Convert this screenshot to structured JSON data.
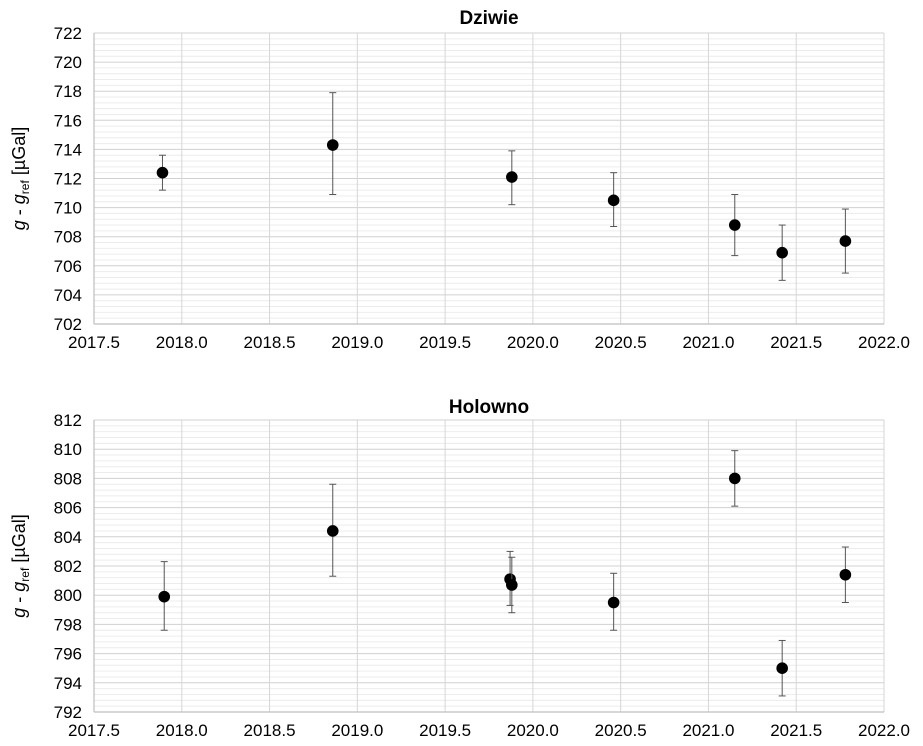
{
  "chart_data": [
    {
      "type": "scatter",
      "title": "Dziwie",
      "ylabel": {
        "italic_1": "g",
        "sep": " - ",
        "italic_2": "g",
        "sub": "ref",
        "unit": " [µGal]"
      },
      "xlim": [
        2017.5,
        2022.0
      ],
      "ylim": [
        702,
        722
      ],
      "x_ticks": [
        "2017.5",
        "2018.0",
        "2018.5",
        "2019.0",
        "2019.5",
        "2020.0",
        "2020.5",
        "2021.0",
        "2021.5",
        "2022.0"
      ],
      "y_ticks": [
        "702",
        "704",
        "706",
        "708",
        "710",
        "712",
        "714",
        "716",
        "718",
        "720",
        "722"
      ],
      "grid": true,
      "points": [
        {
          "x": 2017.89,
          "y": 712.4,
          "ylow": 711.2,
          "yhigh": 713.6
        },
        {
          "x": 2018.86,
          "y": 714.3,
          "ylow": 710.9,
          "yhigh": 717.9
        },
        {
          "x": 2019.88,
          "y": 712.1,
          "ylow": 710.2,
          "yhigh": 713.9
        },
        {
          "x": 2020.46,
          "y": 710.5,
          "ylow": 708.7,
          "yhigh": 712.4
        },
        {
          "x": 2021.15,
          "y": 708.8,
          "ylow": 706.7,
          "yhigh": 710.9
        },
        {
          "x": 2021.42,
          "y": 706.9,
          "ylow": 705.0,
          "yhigh": 708.8
        },
        {
          "x": 2021.78,
          "y": 707.7,
          "ylow": 705.5,
          "yhigh": 709.9
        }
      ]
    },
    {
      "type": "scatter",
      "title": "Holowno",
      "ylabel": {
        "italic_1": "g",
        "sep": " - ",
        "italic_2": "g",
        "sub": "ref",
        "unit": " [µGal]"
      },
      "xlim": [
        2017.5,
        2022.0
      ],
      "ylim": [
        792,
        812
      ],
      "x_ticks": [
        "2017.5",
        "2018.0",
        "2018.5",
        "2019.0",
        "2019.5",
        "2020.0",
        "2020.5",
        "2021.0",
        "2021.5",
        "2022.0"
      ],
      "y_ticks": [
        "792",
        "794",
        "796",
        "798",
        "800",
        "802",
        "804",
        "806",
        "808",
        "810",
        "812"
      ],
      "grid": true,
      "points": [
        {
          "x": 2017.9,
          "y": 799.9,
          "ylow": 797.6,
          "yhigh": 802.3
        },
        {
          "x": 2018.86,
          "y": 804.4,
          "ylow": 801.3,
          "yhigh": 807.6
        },
        {
          "x": 2019.87,
          "y": 801.1,
          "ylow": 799.3,
          "yhigh": 803.0
        },
        {
          "x": 2019.88,
          "y": 800.7,
          "ylow": 798.8,
          "yhigh": 802.6
        },
        {
          "x": 2020.46,
          "y": 799.5,
          "ylow": 797.6,
          "yhigh": 801.5
        },
        {
          "x": 2021.15,
          "y": 808.0,
          "ylow": 806.1,
          "yhigh": 809.9
        },
        {
          "x": 2021.42,
          "y": 795.0,
          "ylow": 793.1,
          "yhigh": 796.9
        },
        {
          "x": 2021.78,
          "y": 801.4,
          "ylow": 799.5,
          "yhigh": 803.3
        }
      ]
    }
  ]
}
